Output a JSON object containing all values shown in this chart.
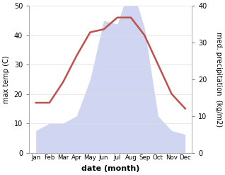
{
  "months": [
    "Jan",
    "Feb",
    "Mar",
    "Apr",
    "May",
    "Jun",
    "Jul",
    "Aug",
    "Sep",
    "Oct",
    "Nov",
    "Dec"
  ],
  "temperature": [
    17,
    17,
    24,
    33,
    41,
    42,
    46,
    46,
    40,
    30,
    20,
    15
  ],
  "precipitation": [
    6,
    8,
    8,
    10,
    20,
    36,
    35,
    46,
    34,
    10,
    6,
    5
  ],
  "temp_color": "#c0504d",
  "precip_color": "#aab4e8",
  "precip_fill_alpha": 0.55,
  "temp_ylim": [
    0,
    50
  ],
  "precip_ylim": [
    0,
    40
  ],
  "temp_yticks": [
    0,
    10,
    20,
    30,
    40,
    50
  ],
  "precip_yticks": [
    0,
    10,
    20,
    30,
    40
  ],
  "xlabel": "date (month)",
  "ylabel_left": "max temp (C)",
  "ylabel_right": "med. precipitation  (kg/m2)",
  "background_color": "#ffffff"
}
